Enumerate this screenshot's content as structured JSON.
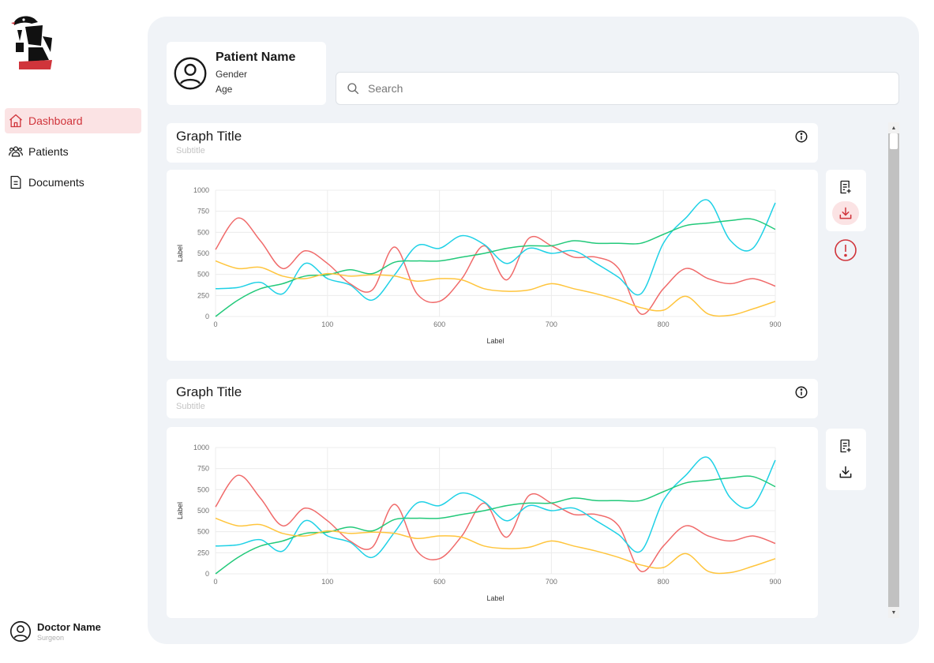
{
  "sidebar": {
    "items": [
      {
        "label": "Dashboard",
        "icon": "home-icon",
        "active": true
      },
      {
        "label": "Patients",
        "icon": "users-icon",
        "active": false
      },
      {
        "label": "Documents",
        "icon": "document-icon",
        "active": false
      }
    ],
    "doctor": {
      "name": "Doctor Name",
      "role": "Surgeon"
    }
  },
  "patient": {
    "name": "Patient Name",
    "gender": "Gender",
    "age": "Age"
  },
  "search": {
    "placeholder": "Search"
  },
  "graphs": [
    {
      "title": "Graph Title",
      "subtitle": "Subtitle"
    },
    {
      "title": "Graph Title",
      "subtitle": "Subtitle"
    }
  ],
  "colors": {
    "accent": "#d0343b",
    "red": "#f06a6a",
    "cyan": "#1fd1e6",
    "green": "#22c97a",
    "yellow": "#ffc53d"
  },
  "chart_data": [
    {
      "type": "line",
      "xlabel": "Label",
      "ylabel": "Label",
      "xlim": [
        0,
        1000
      ],
      "ylim": [
        0,
        1000
      ],
      "x_ticks": [
        "0",
        "100",
        "600",
        "700",
        "800",
        "900"
      ],
      "y_ticks": [
        "1000",
        "750",
        "500",
        "500",
        "500",
        "250",
        "0"
      ],
      "x": [
        0,
        40,
        80,
        120,
        160,
        200,
        240,
        280,
        320,
        360,
        400,
        440,
        480,
        520,
        560,
        600,
        640,
        680,
        720,
        760,
        800,
        840,
        880,
        920,
        960,
        1000
      ],
      "series": [
        {
          "color": "#f06a6a",
          "values": [
            530,
            780,
            600,
            380,
            520,
            420,
            260,
            210,
            550,
            180,
            120,
            300,
            560,
            290,
            620,
            560,
            470,
            470,
            380,
            20,
            220,
            380,
            300,
            260,
            300,
            240
          ]
        },
        {
          "color": "#1fd1e6",
          "values": [
            220,
            230,
            270,
            180,
            420,
            300,
            250,
            130,
            330,
            560,
            540,
            640,
            570,
            420,
            540,
            500,
            520,
            420,
            310,
            180,
            580,
            780,
            920,
            600,
            540,
            900
          ]
        },
        {
          "color": "#22c97a",
          "values": [
            0,
            130,
            220,
            260,
            320,
            330,
            370,
            340,
            430,
            440,
            440,
            470,
            500,
            540,
            560,
            560,
            600,
            580,
            580,
            580,
            650,
            720,
            740,
            760,
            770,
            690
          ]
        },
        {
          "color": "#ffc53d",
          "values": [
            440,
            380,
            390,
            320,
            300,
            340,
            320,
            330,
            320,
            280,
            300,
            290,
            220,
            200,
            210,
            260,
            220,
            180,
            130,
            70,
            50,
            160,
            20,
            10,
            60,
            120
          ]
        }
      ]
    },
    {
      "type": "line",
      "xlabel": "Label",
      "ylabel": "Label",
      "xlim": [
        0,
        1000
      ],
      "ylim": [
        0,
        1000
      ],
      "x_ticks": [
        "0",
        "100",
        "600",
        "700",
        "800",
        "900"
      ],
      "y_ticks": [
        "1000",
        "750",
        "500",
        "500",
        "500",
        "250",
        "0"
      ],
      "x": [
        0,
        40,
        80,
        120,
        160,
        200,
        240,
        280,
        320,
        360,
        400,
        440,
        480,
        520,
        560,
        600,
        640,
        680,
        720,
        760,
        800,
        840,
        880,
        920,
        960,
        1000
      ],
      "series": [
        {
          "color": "#f06a6a",
          "values": [
            530,
            780,
            600,
            380,
            520,
            420,
            260,
            210,
            550,
            180,
            120,
            300,
            560,
            290,
            620,
            560,
            470,
            470,
            380,
            20,
            220,
            380,
            300,
            260,
            300,
            240
          ]
        },
        {
          "color": "#1fd1e6",
          "values": [
            220,
            230,
            270,
            180,
            420,
            300,
            250,
            130,
            330,
            560,
            540,
            640,
            570,
            420,
            540,
            500,
            520,
            420,
            310,
            180,
            580,
            780,
            920,
            600,
            540,
            900
          ]
        },
        {
          "color": "#22c97a",
          "values": [
            0,
            130,
            220,
            260,
            320,
            330,
            370,
            340,
            430,
            440,
            440,
            470,
            500,
            540,
            560,
            560,
            600,
            580,
            580,
            580,
            650,
            720,
            740,
            760,
            770,
            690
          ]
        },
        {
          "color": "#ffc53d",
          "values": [
            440,
            380,
            390,
            320,
            300,
            340,
            320,
            330,
            320,
            280,
            300,
            290,
            220,
            200,
            210,
            260,
            220,
            180,
            130,
            70,
            50,
            160,
            20,
            10,
            60,
            120
          ]
        }
      ]
    }
  ]
}
